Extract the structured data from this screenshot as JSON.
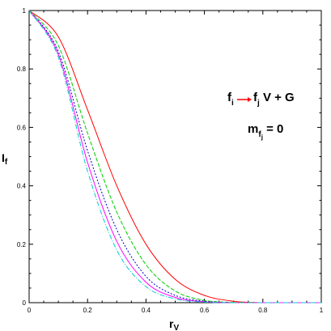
{
  "chart_data": {
    "type": "line",
    "xlabel": "r",
    "xlabel_sub": "V",
    "ylabel": "I",
    "ylabel_sub": "f",
    "xlim": [
      0,
      1
    ],
    "ylim": [
      0,
      1
    ],
    "grid": false,
    "x_ticks": [
      "0",
      "0.2",
      "0.4",
      "0.6",
      "0.8",
      "1"
    ],
    "y_ticks": [
      "0",
      "0.2",
      "0.4",
      "0.6",
      "0.8",
      "1"
    ],
    "annotations": {
      "process": {
        "left": "f",
        "left_sub": "i",
        "right": "f",
        "right_sub": "j",
        "suffix": " V + G",
        "arrow_color": "#ff0000"
      },
      "condition": {
        "var": "m",
        "var_sub": "f",
        "var_subsub": "j",
        "value": " = 0"
      }
    },
    "series": [
      {
        "color": "#ff0000",
        "dash": "",
        "x": [
          0,
          0.1,
          0.2,
          0.3,
          0.4,
          0.5,
          0.6,
          0.7,
          0.8,
          0.9,
          1.0
        ],
        "y": [
          1.0,
          0.91,
          0.66,
          0.4,
          0.2,
          0.08,
          0.025,
          0.005,
          0.0,
          0.0,
          0.0
        ]
      },
      {
        "color": "#00cc00",
        "dash": "5,2",
        "x": [
          0,
          0.1,
          0.2,
          0.3,
          0.4,
          0.5,
          0.6,
          0.7,
          0.8,
          0.9,
          1.0
        ],
        "y": [
          1.0,
          0.88,
          0.58,
          0.31,
          0.13,
          0.04,
          0.008,
          0.001,
          0.0,
          0.0,
          0.0
        ]
      },
      {
        "color": "#0000cc",
        "dash": "2,2",
        "x": [
          0,
          0.1,
          0.2,
          0.3,
          0.4,
          0.5,
          0.6,
          0.7,
          0.8,
          0.9,
          1.0
        ],
        "y": [
          1.0,
          0.86,
          0.52,
          0.25,
          0.09,
          0.025,
          0.005,
          0.0,
          0.0,
          0.0,
          0.0
        ]
      },
      {
        "color": "#ff00ff",
        "dash": "",
        "x": [
          0,
          0.1,
          0.2,
          0.3,
          0.4,
          0.5,
          0.6,
          0.7,
          0.8,
          0.9,
          1.0
        ],
        "y": [
          1.0,
          0.85,
          0.48,
          0.21,
          0.07,
          0.018,
          0.003,
          0.0,
          0.0,
          0.0,
          0.0
        ]
      },
      {
        "color": "#00cccc",
        "dash": "6,2,1,2",
        "x": [
          0,
          0.1,
          0.2,
          0.3,
          0.4,
          0.5,
          0.6,
          0.7,
          0.8,
          0.9,
          1.0
        ],
        "y": [
          1.0,
          0.84,
          0.45,
          0.18,
          0.055,
          0.013,
          0.002,
          0.0,
          0.0,
          0.0,
          0.0
        ]
      }
    ]
  }
}
